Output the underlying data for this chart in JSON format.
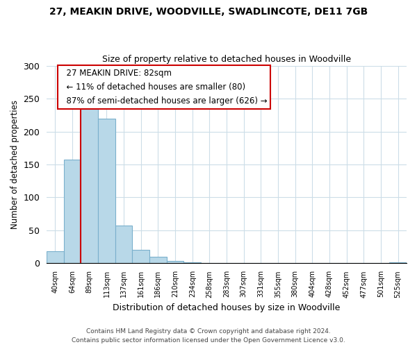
{
  "title": "27, MEAKIN DRIVE, WOODVILLE, SWADLINCOTE, DE11 7GB",
  "subtitle": "Size of property relative to detached houses in Woodville",
  "xlabel": "Distribution of detached houses by size in Woodville",
  "ylabel": "Number of detached properties",
  "bar_labels": [
    "40sqm",
    "64sqm",
    "89sqm",
    "113sqm",
    "137sqm",
    "161sqm",
    "186sqm",
    "210sqm",
    "234sqm",
    "258sqm",
    "283sqm",
    "307sqm",
    "331sqm",
    "355sqm",
    "380sqm",
    "404sqm",
    "428sqm",
    "452sqm",
    "477sqm",
    "501sqm",
    "525sqm"
  ],
  "bar_values": [
    18,
    157,
    234,
    219,
    57,
    20,
    10,
    4,
    2,
    0,
    0,
    0,
    0,
    0,
    0,
    0,
    0,
    0,
    0,
    0,
    2
  ],
  "bar_color": "#b8d8e8",
  "bar_edge_color": "#7ab0cc",
  "property_line_color": "#cc0000",
  "ylim": [
    0,
    300
  ],
  "yticks": [
    0,
    50,
    100,
    150,
    200,
    250,
    300
  ],
  "annotation_title": "27 MEAKIN DRIVE: 82sqm",
  "annotation_line1": "← 11% of detached houses are smaller (80)",
  "annotation_line2": "87% of semi-detached houses are larger (626) →",
  "annotation_box_color": "#ffffff",
  "annotation_box_edge": "#cc0000",
  "footer_line1": "Contains HM Land Registry data © Crown copyright and database right 2024.",
  "footer_line2": "Contains public sector information licensed under the Open Government Licence v3.0.",
  "background_color": "#ffffff",
  "grid_color": "#ccdde8"
}
